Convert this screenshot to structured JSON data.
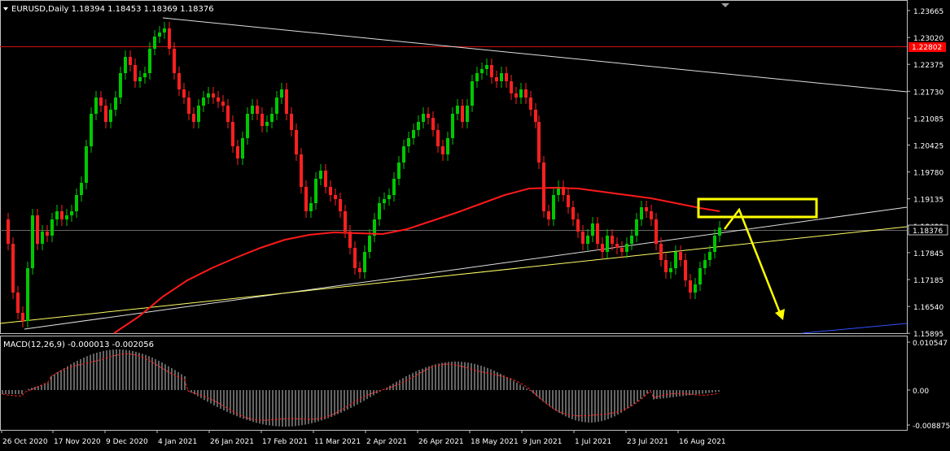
{
  "header": {
    "symbol_line": "EURUSD,Daily  1.18394 1.18453 1.18369 1.18376"
  },
  "macd": {
    "label": "MACD(12,26,9) -0.000013 -0.002056"
  },
  "price_axis": {
    "ticks": [
      "1.23665",
      "1.23020",
      "1.22375",
      "1.21730",
      "1.21085",
      "1.20425",
      "1.19780",
      "1.19135",
      "1.18490",
      "1.17845",
      "1.17185",
      "1.16540",
      "1.15895"
    ],
    "current_price": "1.18376",
    "resistance_price": "1.22802"
  },
  "macd_axis": {
    "ticks": [
      "0.010547",
      "0.00",
      "-0.008875"
    ]
  },
  "time_axis": {
    "labels": [
      "26 Oct 2020",
      "17 Nov 2020",
      "9 Dec 2020",
      "4 Jan 2021",
      "26 Jan 2021",
      "17 Feb 2021",
      "11 Mar 2021",
      "2 Apr 2021",
      "26 Apr 2021",
      "18 May 2021",
      "9 Jun 2021",
      "1 Jul 2021",
      "23 Jul 2021",
      "16 Aug 2021"
    ]
  },
  "colors": {
    "bull": "#00c800",
    "bear": "#ff2020",
    "ma": "#ff1a1a",
    "trend_white": "#e0e0e0",
    "trend_yellow": "#ffff66",
    "highlight": "#ffff00",
    "price_tag_bg": "#ff0000",
    "axis": "#c0c0c0"
  },
  "annotations": {
    "resistance_box": "highlight-zone",
    "arrow": "down-arrow"
  }
}
